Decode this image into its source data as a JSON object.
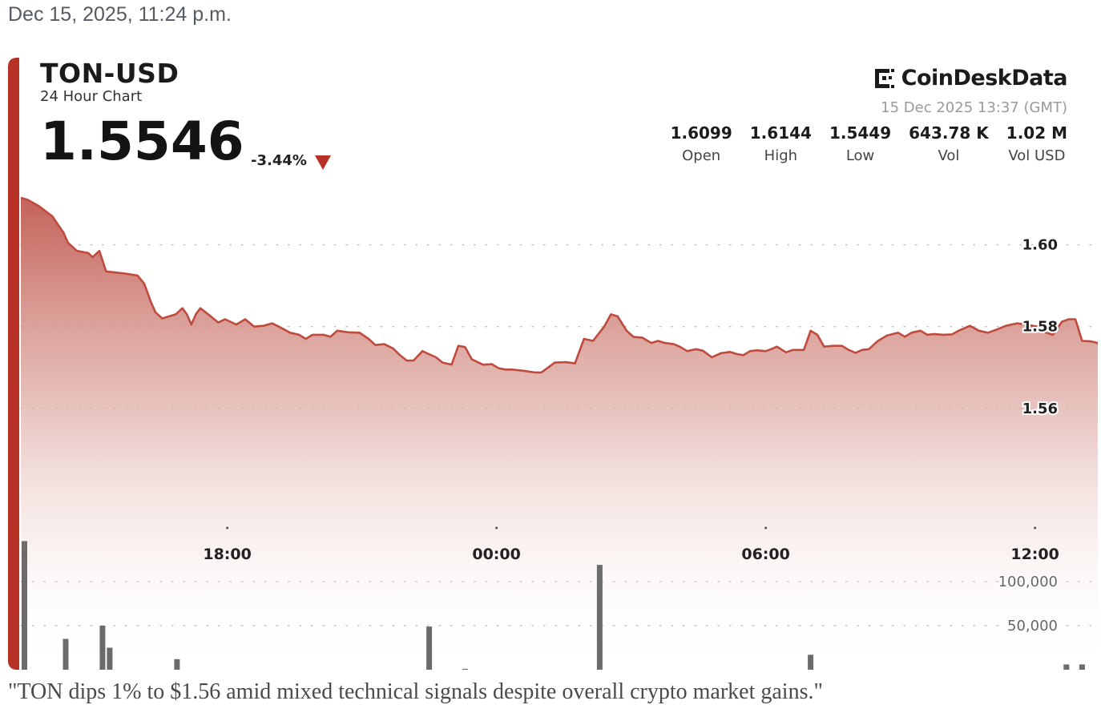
{
  "timestamp": "Dec 15, 2025, 11:24 p.m.",
  "header": {
    "symbol": "TON-USD",
    "subtitle": "24 Hour Chart",
    "price": "1.5546",
    "change": "-3.44%"
  },
  "brand": {
    "name": "CoinDeskData",
    "logo_icon": "coindesk-logo-icon",
    "datetime": "15 Dec 2025 13:37 (GMT)"
  },
  "stats": [
    {
      "value": "1.6099",
      "label": "Open"
    },
    {
      "value": "1.6144",
      "label": "High"
    },
    {
      "value": "1.5449",
      "label": "Low"
    },
    {
      "value": "643.78 K",
      "label": "Vol"
    },
    {
      "value": "1.02 M",
      "label": "Vol USD"
    }
  ],
  "caption": "\"TON dips 1% to $1.56 amid mixed technical signals despite overall crypto market gains.\"",
  "colors": {
    "accent": "#b73224",
    "line": "#bf4a3e",
    "volume_bar": "#6b6b6b",
    "grid": "#bdbdbd"
  },
  "chart_data": {
    "type": "area",
    "title": "TON-USD",
    "subtitle": "24 Hour Chart",
    "price_ticks": [
      {
        "value": 1.6,
        "label": "1.60"
      },
      {
        "value": 1.58,
        "label": "1.58"
      },
      {
        "value": 1.56,
        "label": "1.56"
      }
    ],
    "volume_ticks": [
      {
        "value": 100000,
        "label": "100,000"
      },
      {
        "value": 50000,
        "label": "50,000"
      }
    ],
    "x_ticks": [
      {
        "hour": 4.6,
        "label": "18:00"
      },
      {
        "hour": 10.6,
        "label": "00:00"
      },
      {
        "hour": 16.6,
        "label": "06:00"
      },
      {
        "hour": 22.6,
        "label": "12:00"
      }
    ],
    "x_range": [
      0,
      24
    ],
    "price_range": [
      1.5435,
      1.6152
    ],
    "volume_range": [
      0,
      190000
    ],
    "grid": true,
    "price_series": [
      [
        0.0,
        1.6115
      ],
      [
        0.15,
        1.611
      ],
      [
        0.4,
        1.6095
      ],
      [
        0.7,
        1.607
      ],
      [
        0.95,
        1.603
      ],
      [
        1.05,
        1.6005
      ],
      [
        1.25,
        1.5985
      ],
      [
        1.5,
        1.598
      ],
      [
        1.6,
        1.597
      ],
      [
        1.75,
        1.5985
      ],
      [
        1.9,
        1.5935
      ],
      [
        2.3,
        1.593
      ],
      [
        2.6,
        1.5925
      ],
      [
        2.75,
        1.5905
      ],
      [
        2.9,
        1.586
      ],
      [
        3.0,
        1.5835
      ],
      [
        3.15,
        1.582
      ],
      [
        3.45,
        1.583
      ],
      [
        3.6,
        1.5845
      ],
      [
        3.7,
        1.583
      ],
      [
        3.8,
        1.5805
      ],
      [
        3.9,
        1.583
      ],
      [
        4.0,
        1.5845
      ],
      [
        4.2,
        1.5828
      ],
      [
        4.4,
        1.581
      ],
      [
        4.55,
        1.5818
      ],
      [
        4.8,
        1.5805
      ],
      [
        5.0,
        1.5818
      ],
      [
        5.2,
        1.58
      ],
      [
        5.4,
        1.5802
      ],
      [
        5.6,
        1.5808
      ],
      [
        5.75,
        1.58
      ],
      [
        6.0,
        1.5785
      ],
      [
        6.2,
        1.578
      ],
      [
        6.35,
        1.577
      ],
      [
        6.5,
        1.578
      ],
      [
        6.75,
        1.578
      ],
      [
        6.9,
        1.5775
      ],
      [
        7.05,
        1.579
      ],
      [
        7.3,
        1.5786
      ],
      [
        7.55,
        1.5785
      ],
      [
        7.75,
        1.577
      ],
      [
        7.9,
        1.5755
      ],
      [
        8.1,
        1.5757
      ],
      [
        8.3,
        1.5746
      ],
      [
        8.45,
        1.573
      ],
      [
        8.6,
        1.5717
      ],
      [
        8.75,
        1.5717
      ],
      [
        8.95,
        1.574
      ],
      [
        9.25,
        1.5725
      ],
      [
        9.4,
        1.5712
      ],
      [
        9.6,
        1.5707
      ],
      [
        9.75,
        1.5753
      ],
      [
        9.9,
        1.575
      ],
      [
        10.05,
        1.572
      ],
      [
        10.3,
        1.5707
      ],
      [
        10.5,
        1.5708
      ],
      [
        10.65,
        1.5698
      ],
      [
        10.8,
        1.5695
      ],
      [
        10.95,
        1.5695
      ],
      [
        11.2,
        1.5692
      ],
      [
        11.45,
        1.5688
      ],
      [
        11.6,
        1.5688
      ],
      [
        11.9,
        1.5712
      ],
      [
        12.15,
        1.5713
      ],
      [
        12.35,
        1.571
      ],
      [
        12.55,
        1.577
      ],
      [
        12.75,
        1.5765
      ],
      [
        13.0,
        1.58
      ],
      [
        13.15,
        1.583
      ],
      [
        13.3,
        1.5825
      ],
      [
        13.5,
        1.579
      ],
      [
        13.65,
        1.5775
      ],
      [
        13.85,
        1.5773
      ],
      [
        14.05,
        1.576
      ],
      [
        14.2,
        1.5765
      ],
      [
        14.35,
        1.576
      ],
      [
        14.55,
        1.5757
      ],
      [
        14.7,
        1.575
      ],
      [
        14.85,
        1.574
      ],
      [
        15.05,
        1.5745
      ],
      [
        15.2,
        1.5741
      ],
      [
        15.4,
        1.5725
      ],
      [
        15.6,
        1.5735
      ],
      [
        15.8,
        1.5738
      ],
      [
        15.95,
        1.5733
      ],
      [
        16.1,
        1.573
      ],
      [
        16.25,
        1.574
      ],
      [
        16.4,
        1.5742
      ],
      [
        16.6,
        1.574
      ],
      [
        16.75,
        1.5746
      ],
      [
        16.85,
        1.5751
      ],
      [
        17.05,
        1.5737
      ],
      [
        17.2,
        1.5743
      ],
      [
        17.45,
        1.5743
      ],
      [
        17.6,
        1.579
      ],
      [
        17.75,
        1.578
      ],
      [
        17.9,
        1.5751
      ],
      [
        18.1,
        1.5753
      ],
      [
        18.3,
        1.5753
      ],
      [
        18.45,
        1.5743
      ],
      [
        18.6,
        1.5736
      ],
      [
        18.75,
        1.5743
      ],
      [
        18.9,
        1.5745
      ],
      [
        19.1,
        1.5765
      ],
      [
        19.3,
        1.5778
      ],
      [
        19.55,
        1.5785
      ],
      [
        19.7,
        1.5775
      ],
      [
        19.85,
        1.5785
      ],
      [
        20.05,
        1.579
      ],
      [
        20.2,
        1.578
      ],
      [
        20.35,
        1.5782
      ],
      [
        20.55,
        1.578
      ],
      [
        20.75,
        1.5781
      ],
      [
        20.9,
        1.579
      ],
      [
        21.15,
        1.5802
      ],
      [
        21.35,
        1.579
      ],
      [
        21.55,
        1.5785
      ],
      [
        21.75,
        1.5793
      ],
      [
        21.95,
        1.5802
      ],
      [
        22.2,
        1.5808
      ],
      [
        22.4,
        1.5805
      ],
      [
        22.65,
        1.58
      ],
      [
        22.85,
        1.5785
      ],
      [
        23.0,
        1.578
      ],
      [
        23.2,
        1.5812
      ],
      [
        23.35,
        1.5818
      ],
      [
        23.5,
        1.5818
      ],
      [
        23.65,
        1.5765
      ],
      [
        23.85,
        1.5764
      ],
      [
        24.0,
        1.576
      ],
      [
        24.1,
        1.5732
      ]
    ],
    "volume_bars": [
      [
        0.08,
        146000
      ],
      [
        1.0,
        35000
      ],
      [
        1.82,
        50000
      ],
      [
        1.98,
        25000
      ],
      [
        3.48,
        12000
      ],
      [
        9.1,
        49000
      ],
      [
        9.9,
        1000
      ],
      [
        12.9,
        119000
      ],
      [
        17.6,
        17000
      ],
      [
        23.3,
        6000
      ],
      [
        23.65,
        6000
      ]
    ]
  }
}
